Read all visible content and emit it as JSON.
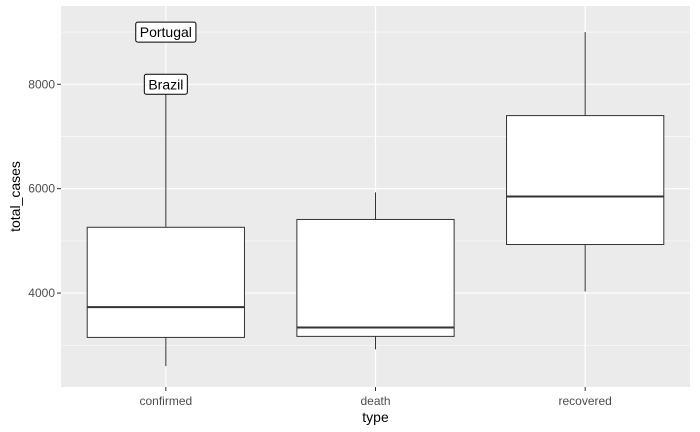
{
  "chart_data": {
    "type": "boxplot",
    "xlabel": "type",
    "ylabel": "total_cases",
    "categories": [
      "confirmed",
      "death",
      "recovered"
    ],
    "boxes": [
      {
        "name": "confirmed",
        "whisker_low": 2600,
        "q1": 3150,
        "median": 3730,
        "q3": 5260,
        "whisker_high": 7900
      },
      {
        "name": "death",
        "whisker_low": 2920,
        "q1": 3170,
        "median": 3340,
        "q3": 5410,
        "whisker_high": 5930
      },
      {
        "name": "recovered",
        "whisker_low": 4030,
        "q1": 4930,
        "median": 5850,
        "q3": 7400,
        "whisker_high": 9000
      }
    ],
    "annotations": [
      {
        "text": "Portugal",
        "category": "confirmed",
        "y": 9000
      },
      {
        "text": "Brazil",
        "category": "confirmed",
        "y": 8000
      }
    ],
    "ylim": [
      2200,
      9500
    ],
    "yticks": [
      4000,
      6000,
      8000
    ],
    "grid": true,
    "colors": {
      "panel": "#EBEBEB",
      "grid_major": "#FFFFFF",
      "box_fill": "#FFFFFF",
      "box_stroke": "#333333"
    }
  }
}
